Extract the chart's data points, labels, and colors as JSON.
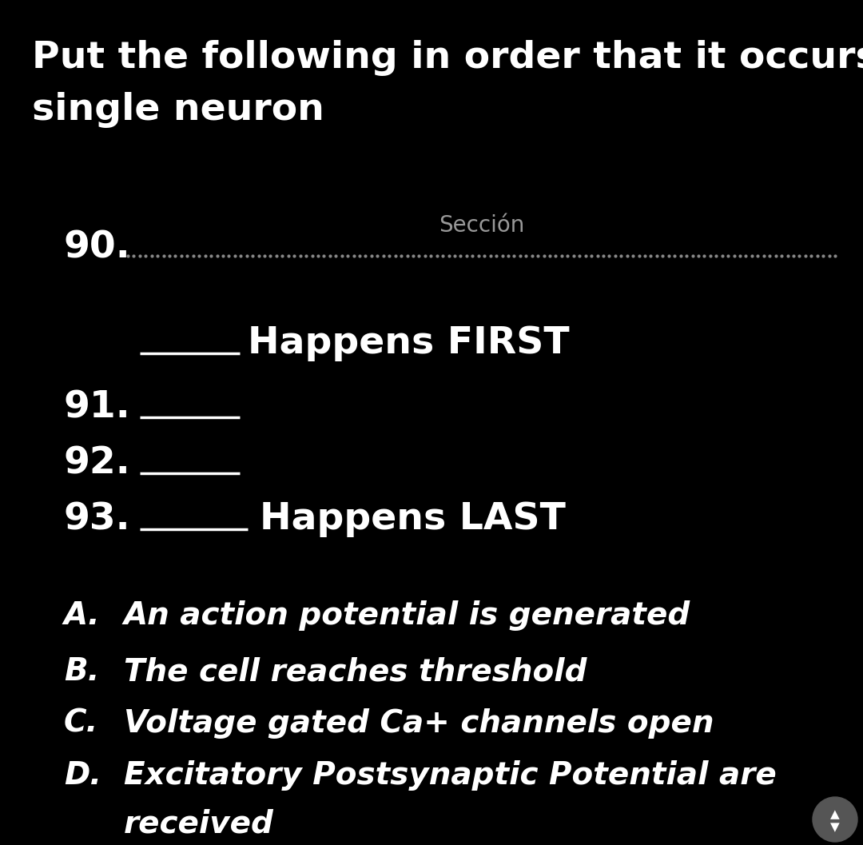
{
  "background_color": "#000000",
  "title_line1": "Put the following in order that it occurs in a",
  "title_line2": "single neuron",
  "title_fontsize": 34,
  "title_color": "#ffffff",
  "section_label": "Sección",
  "section_label_color": "#999999",
  "section_label_fontsize": 20,
  "q90_label": "90.",
  "number_fontsize": 34,
  "number_color": "#ffffff",
  "happens_first_text": "Happens FIRST",
  "happens_last_text": "Happens LAST",
  "q91_label": "91.",
  "q92_label": "92.",
  "q93_label": "93.",
  "answers": [
    {
      "label": "A.",
      "text": "An action potential is generated"
    },
    {
      "label": "B.",
      "text": "The cell reaches threshold"
    },
    {
      "label": "C.",
      "text": "Voltage gated Ca+ channels open"
    },
    {
      "label": "D.",
      "text": "Excitatory Postsynaptic Potential are"
    },
    {
      "label": "",
      "text": "received"
    }
  ],
  "answer_fontsize": 28,
  "answer_color": "#ffffff",
  "dotted_color": "#888888",
  "blank_line_color": "#ffffff"
}
